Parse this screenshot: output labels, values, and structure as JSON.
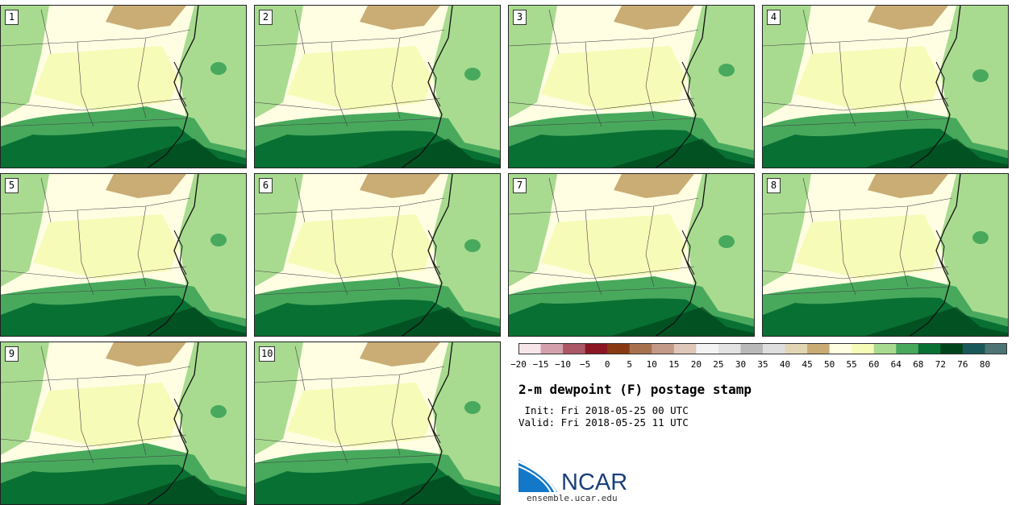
{
  "panels": [
    {
      "label": "1"
    },
    {
      "label": "2"
    },
    {
      "label": "3"
    },
    {
      "label": "4"
    },
    {
      "label": "5"
    },
    {
      "label": "6"
    },
    {
      "label": "7"
    },
    {
      "label": "8"
    },
    {
      "label": "9"
    },
    {
      "label": "10"
    }
  ],
  "colorbar": {
    "colors": [
      "#f6e6ea",
      "#d4a0ac",
      "#ab5766",
      "#8b1724",
      "#8a3a13",
      "#a8724f",
      "#c39a88",
      "#dfc7b9",
      "#f3f3f3",
      "#e3e3e3",
      "#b9b9b9",
      "#dedede",
      "#e2d5b3",
      "#c9ad75",
      "#fffee3",
      "#f6fbb7",
      "#a8db90",
      "#48a95d",
      "#087033",
      "#00441b",
      "#1a5959",
      "#4d7575"
    ],
    "ticks": [
      "−20",
      "−15",
      "−10",
      "−5",
      "0",
      "5",
      "10",
      "15",
      "20",
      "25",
      "30",
      "35",
      "40",
      "45",
      "50",
      "55",
      "60",
      "64",
      "68",
      "72",
      "76",
      "80"
    ]
  },
  "title": "2-m dewpoint (F) postage stamp",
  "init_line": " Init: Fri 2018-05-25 00 UTC",
  "valid_line": "Valid: Fri 2018-05-25 11 UTC",
  "logo": {
    "name": "NCAR",
    "url": "ensemble.ucar.edu"
  }
}
